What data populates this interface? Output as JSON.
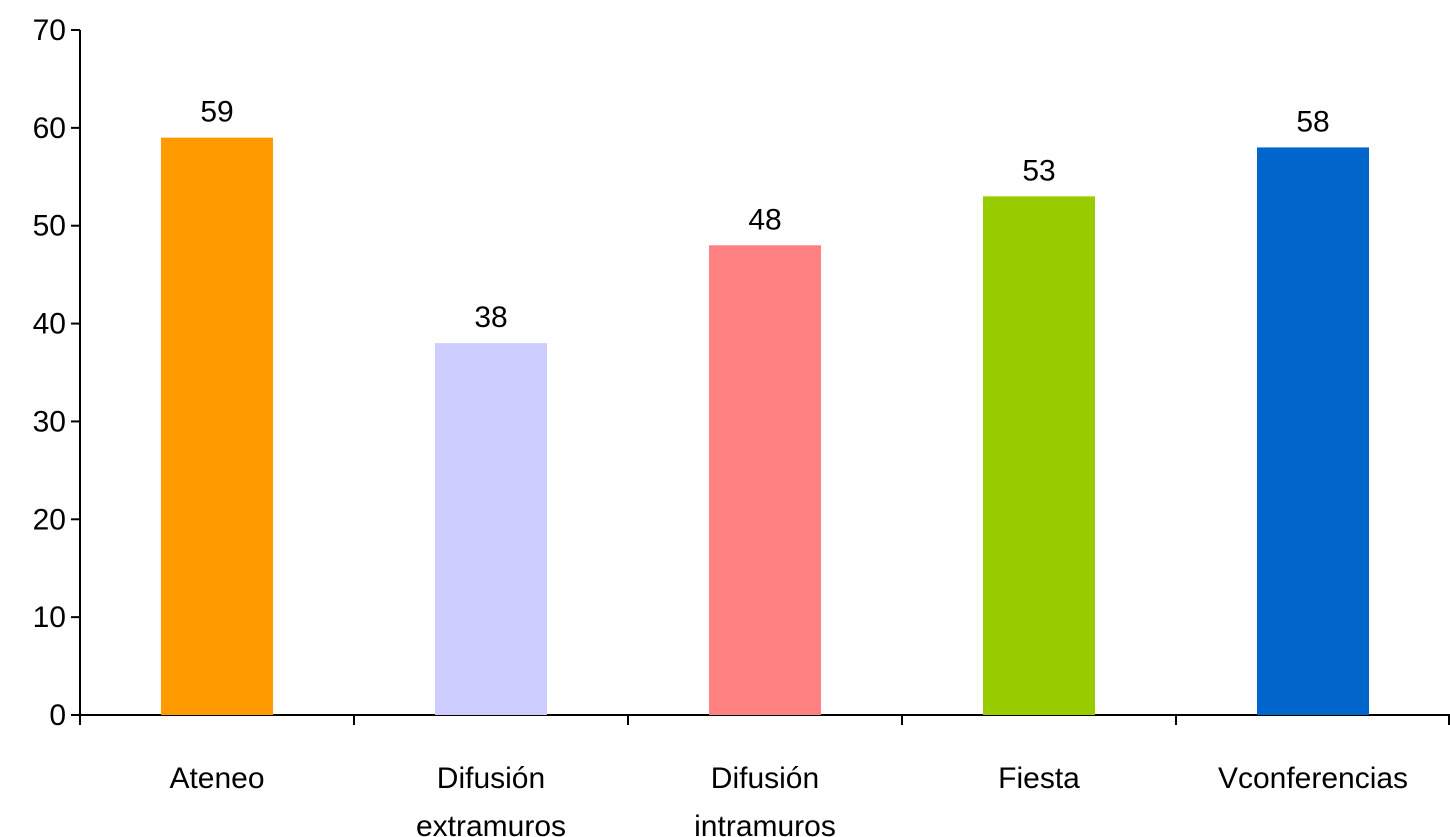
{
  "chart_data": {
    "type": "bar",
    "title": "",
    "xlabel": "",
    "ylabel": "",
    "ylim": [
      0,
      70
    ],
    "yticks": [
      0,
      10,
      20,
      30,
      40,
      50,
      60,
      70
    ],
    "categories": [
      [
        "Ateneo"
      ],
      [
        "Difusión",
        "extramuros"
      ],
      [
        "Difusión",
        "intramuros"
      ],
      [
        "Fiesta"
      ],
      [
        "Vconferencias"
      ]
    ],
    "values": [
      59,
      38,
      48,
      53,
      58
    ],
    "colors": [
      "#FF9900",
      "#CCCCFF",
      "#FF8080",
      "#99CC00",
      "#0066CC"
    ],
    "data_labels": true,
    "grid": false,
    "legend": "none"
  }
}
